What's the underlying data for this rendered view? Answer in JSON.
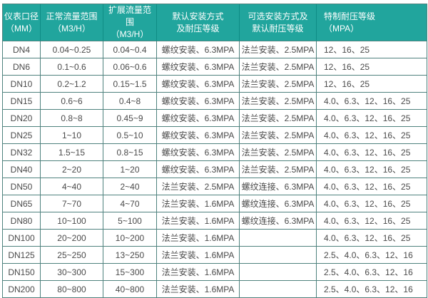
{
  "chart_data": {
    "type": "table",
    "title": "",
    "columns": [
      {
        "name": "diameter",
        "label": "仪表口径（MM）",
        "lines": [
          "仪表口径",
          "（MM）"
        ],
        "align": "center"
      },
      {
        "name": "normal-flow-range",
        "label": "正常流量范围（M3/H）",
        "lines": [
          "正常流量范围",
          "（M3/H）"
        ],
        "align": "center"
      },
      {
        "name": "extended-flow-range",
        "label": "扩展流量范围（M3/H）",
        "lines": [
          "扩展流量范围",
          "（M3/H）"
        ],
        "align": "center"
      },
      {
        "name": "default-installation",
        "label": "默认安装方式及耐压等级",
        "lines": [
          "默认安装方式",
          "及耐压等级"
        ],
        "align": "center"
      },
      {
        "name": "optional-installation",
        "label": "可选安装方式及默认耐压等级",
        "lines": [
          "可选安装方式及",
          "默认耐压等级"
        ],
        "align": "center"
      },
      {
        "name": "custom-pressure-rating",
        "label": "特制耐压等级（MPA）",
        "lines": [
          "特制耐压等级",
          "（MPA）"
        ],
        "align": "left"
      }
    ],
    "rows": [
      [
        "DN4",
        "0.04~0.25",
        "0.04~0.4",
        "螺纹安装、6.3MPA",
        "法兰安装、2.5MPA",
        "12、16、25"
      ],
      [
        "DN6",
        "0.1~0.6",
        "0.06~0.6",
        "螺纹安装、6.3MPA",
        "法兰安装、2.5MPA",
        "12、16、25"
      ],
      [
        "DN10",
        "0.2~1.2",
        "0.15~1.5",
        "螺纹安装、6.3MPA",
        "法兰安装、2.5MPA",
        "12、16、25"
      ],
      [
        "DN15",
        "0.6~6",
        "0.4~8",
        "螺纹安装、6.3MPA",
        "法兰安装、2.5MPA",
        "4.0、6.3、12、16、25"
      ],
      [
        "DN20",
        "0.8~8",
        "0.45~9",
        "螺纹安装、6.3MPA",
        "法兰安装、2.5MPA",
        "4.0、6.3、12、16、25"
      ],
      [
        "DN25",
        "1~10",
        "0.5~10",
        "螺纹安装、6.3MPA",
        "法兰安装、2.5MPA",
        "4.0、6.3、12、16、25"
      ],
      [
        "DN32",
        "1.5~15",
        "0.8~15",
        "螺纹安装、6.3MPA",
        "法兰安装、2.5MPA",
        "4.0、6.3、12、16、25"
      ],
      [
        "DN40",
        "2~20",
        "1~20",
        "螺纹安装、6.3MPA",
        "法兰安装、2.5MPA",
        "4.0、6.3、12、16、25"
      ],
      [
        "DN50",
        "4~40",
        "2~40",
        "法兰安装、2.5MPA",
        "螺纹连接、6.3MPA",
        "4.0、6.3、12、16、25"
      ],
      [
        "DN65",
        "7~70",
        "4~70",
        "法兰安装、1.6MPA",
        "螺纹连接、6.3MPA",
        "4.0、6.3、12、16、25"
      ],
      [
        "DN80",
        "10~100",
        "5~100",
        "法兰安装、1.6MPA",
        "螺纹连接、6.3MPA",
        "4.0、6.3、12、16、25"
      ],
      [
        "DN100",
        "20~200",
        "10~200",
        "法兰安装、1.6MPA",
        "",
        "4.0、6.3、12、16、25"
      ],
      [
        "DN125",
        "25~250",
        "13~250",
        "法兰安装、1.6MPA",
        "",
        "2.5、4.0、6.3、12、16"
      ],
      [
        "DN150",
        "30~300",
        "15~300",
        "法兰安装、1.6MPA",
        "",
        "2.5、4.0、6.3、12、16"
      ],
      [
        "DN200",
        "80~800",
        "40~800",
        "法兰安装、1.6MPA",
        "",
        "2.5、4.0、6.3、12、16"
      ]
    ]
  },
  "colors": {
    "header_bg": "#21a59d",
    "header_text": "#ffffff",
    "header_divider": "#0f8c85",
    "body_border": "#4f827e",
    "body_text": "#4a4a4a",
    "background": "#ffffff"
  }
}
